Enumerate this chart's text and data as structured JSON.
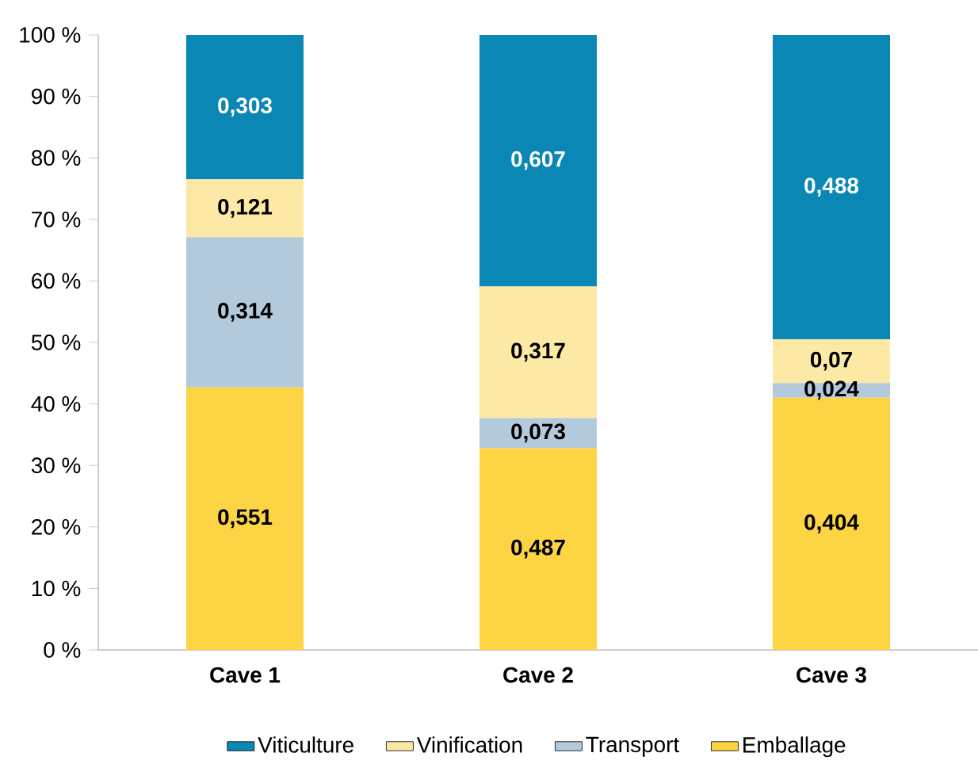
{
  "chart_data": {
    "type": "bar",
    "stacked": true,
    "categories": [
      "Cave 1",
      "Cave 2",
      "Cave 3"
    ],
    "series": [
      {
        "name": "Emballage",
        "color": "#fdd444",
        "values": [
          42.7,
          32.8,
          41.0
        ]
      },
      {
        "name": "Transport",
        "color": "#b3cadc",
        "values": [
          24.4,
          4.9,
          2.4
        ]
      },
      {
        "name": "Vinification",
        "color": "#fde9a6",
        "values": [
          9.4,
          21.4,
          7.1
        ]
      },
      {
        "name": "Viticulture",
        "color": "#0a87b4",
        "values": [
          23.5,
          40.9,
          49.5
        ]
      }
    ],
    "annotations": [
      "0,551",
      "0,314",
      "0,121",
      "0,303",
      "0,487",
      "0,073",
      "0,317",
      "0,607",
      "0,404",
      "0,024",
      "0,07",
      "0,488"
    ],
    "ylim": [
      0,
      100
    ],
    "yticks": [
      {
        "value": 0,
        "label": "0 %"
      },
      {
        "value": 10,
        "label": "10 %"
      },
      {
        "value": 20,
        "label": "20 %"
      },
      {
        "value": 30,
        "label": "30 %"
      },
      {
        "value": 40,
        "label": "40 %"
      },
      {
        "value": 50,
        "label": "50 %"
      },
      {
        "value": 60,
        "label": "60 %"
      },
      {
        "value": 70,
        "label": "70 %"
      },
      {
        "value": 80,
        "label": "80 %"
      },
      {
        "value": 90,
        "label": "90 %"
      },
      {
        "value": 100,
        "label": "100 %"
      }
    ],
    "legend": "bottom",
    "grid": false
  }
}
